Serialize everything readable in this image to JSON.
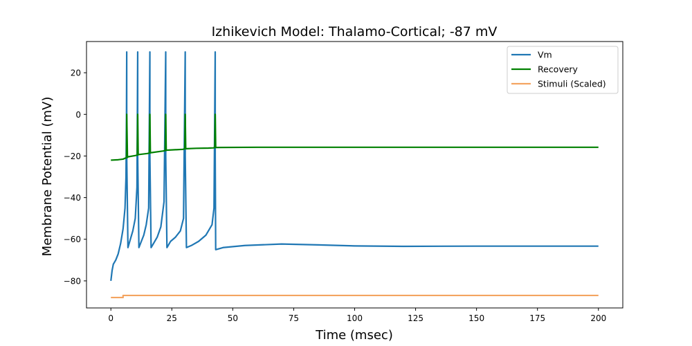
{
  "chart_data": {
    "type": "line",
    "title": "Izhikevich Model: Thalamo-Cortical; -87 mV",
    "xlabel": "Time (msec)",
    "ylabel": "Membrane Potential (mV)",
    "xlim": [
      -10,
      210
    ],
    "ylim": [
      -93,
      35
    ],
    "xticks": [
      0,
      25,
      50,
      75,
      100,
      125,
      150,
      175,
      200
    ],
    "yticks": [
      -80,
      -60,
      -40,
      -20,
      0,
      20
    ],
    "legend_position": "top-right",
    "series": [
      {
        "name": "Vm",
        "color": "#1f77b4",
        "x": [
          0,
          0.5,
          1,
          2,
          3,
          4,
          5,
          5.8,
          6.2,
          6.4,
          6.5,
          6.5,
          7,
          8,
          9,
          10,
          10.7,
          11,
          11,
          11.5,
          12.5,
          13.5,
          14.5,
          15.5,
          16,
          16,
          16.5,
          17.5,
          19,
          20.5,
          21.8,
          22.5,
          22.5,
          23,
          24.5,
          26.5,
          28.5,
          29.8,
          30.5,
          30.5,
          31,
          33,
          36,
          39,
          41.5,
          42.3,
          42.8,
          42.8,
          43,
          46,
          55,
          70,
          85,
          100,
          120,
          150,
          180,
          200
        ],
        "y": [
          -80,
          -75,
          -72,
          -70,
          -67,
          -62,
          -55,
          -45,
          -30,
          0,
          30,
          -20,
          -64,
          -60,
          -56,
          -50,
          -35,
          30,
          -20,
          -64,
          -61,
          -58,
          -53,
          -45,
          30,
          -20,
          -64,
          -62,
          -59,
          -54,
          -42,
          30,
          -20,
          -64,
          -61,
          -59,
          -56,
          -50,
          30,
          -20,
          -64,
          -63,
          -61,
          -58,
          -53,
          -45,
          30,
          -20,
          -65,
          -64,
          -63,
          -62.3,
          -62.7,
          -63.2,
          -63.4,
          -63.3,
          -63.3,
          -63.3
        ]
      },
      {
        "name": "Recovery",
        "color": "#008000",
        "x": [
          0,
          3,
          5,
          6,
          6.4,
          6.5,
          6.8,
          7,
          10,
          10.8,
          11,
          11.2,
          11.5,
          15,
          15.8,
          16,
          16.2,
          16.5,
          21.5,
          22.3,
          22.5,
          22.7,
          23,
          29.5,
          30.3,
          30.5,
          30.7,
          31,
          35,
          40,
          42,
          42.6,
          42.8,
          43,
          43.3,
          60,
          100,
          150,
          200
        ],
        "y": [
          -22,
          -21.8,
          -21.5,
          -21,
          -20.8,
          0,
          -20.7,
          -20.4,
          -19.8,
          -19.6,
          0,
          -19.4,
          -19.3,
          -18.8,
          -18.6,
          0,
          -18.5,
          -18.4,
          -17.6,
          -17.4,
          0,
          -17.3,
          -17.2,
          -16.8,
          -16.6,
          0,
          -16.5,
          -16.5,
          -16.3,
          -16.2,
          -16.1,
          -16,
          0,
          -15.9,
          -15.9,
          -15.8,
          -15.8,
          -15.8,
          -15.8
        ]
      },
      {
        "name": "Stimuli (Scaled)",
        "color": "#f4a460",
        "x": [
          0,
          5,
          5,
          200
        ],
        "y": [
          -88,
          -88,
          -87,
          -87
        ]
      }
    ]
  }
}
